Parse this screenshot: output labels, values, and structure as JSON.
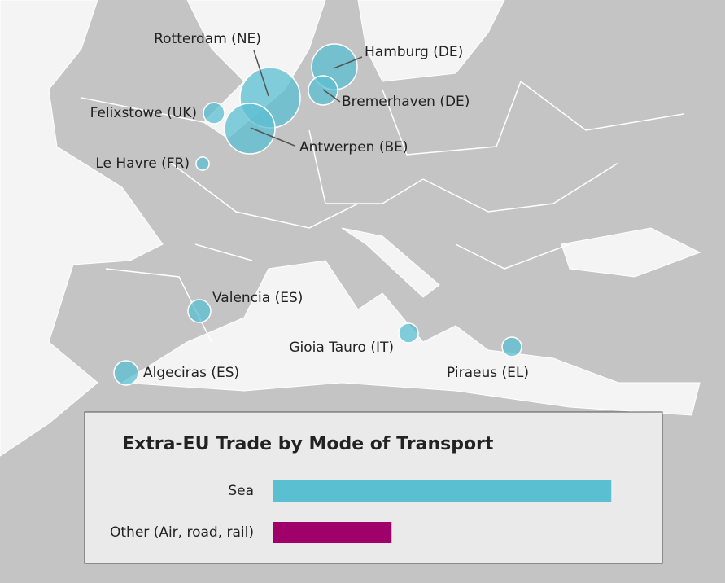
{
  "map": {
    "bubble_color": "#5bbfd2",
    "ports": [
      {
        "label": "Rotterdam (NE)",
        "size": 440
      },
      {
        "label": "Hamburg (DE)",
        "size": 252
      },
      {
        "label": "Felixstowe (UK)",
        "size": 54
      },
      {
        "label": "Bremerhaven (DE)",
        "size": 104
      },
      {
        "label": "Antwerpen (BE)",
        "size": 309
      },
      {
        "label": "Le Havre (FR)",
        "size": 21
      },
      {
        "label": "Valencia (ES)",
        "size": 63
      },
      {
        "label": "Gioia Tauro (IT)",
        "size": 46
      },
      {
        "label": "Algeciras (ES)",
        "size": 72
      },
      {
        "label": "Piraeus (EL)",
        "size": 46
      }
    ]
  },
  "chart_data": {
    "type": "bar",
    "orientation": "horizontal",
    "title": "Extra-EU Trade by Mode of Transport",
    "categories": [
      "Sea",
      "Other (Air, road, rail)"
    ],
    "values": [
      74,
      26
    ],
    "colors": [
      "#5bbfd2",
      "#a0006a"
    ],
    "xlim": [
      0,
      80
    ]
  }
}
